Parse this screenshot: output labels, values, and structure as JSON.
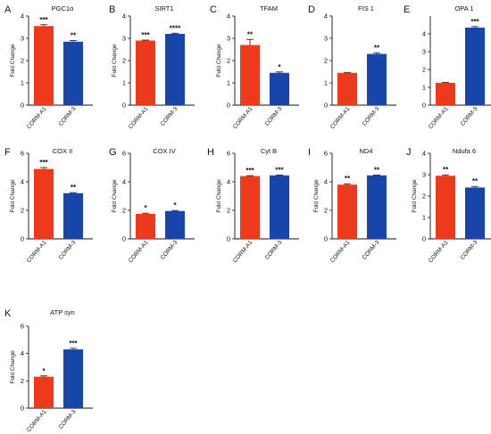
{
  "colors": {
    "bar1": "#ee3a1c",
    "bar2": "#1746a8",
    "axis": "#111111"
  },
  "chart_data": [
    {
      "panel": "A",
      "title": "PGC1α",
      "type": "bar",
      "ylabel": "Fold Change",
      "categories": [
        "CORM-A1",
        "CORM-3"
      ],
      "values": [
        3.55,
        2.85
      ],
      "errors": [
        0.06,
        0.05
      ],
      "significance": [
        "***",
        "**"
      ],
      "ylim": [
        0,
        4
      ],
      "yticks": [
        0,
        1,
        2,
        3,
        4
      ]
    },
    {
      "panel": "B",
      "title": "SIRT1",
      "type": "bar",
      "ylabel": "Fold Change",
      "categories": [
        "CORM-A1",
        "CORM-3"
      ],
      "values": [
        2.9,
        3.2
      ],
      "errors": [
        0.02,
        0.03
      ],
      "significance": [
        "***",
        "****"
      ],
      "ylim": [
        0,
        4
      ],
      "yticks": [
        0,
        1,
        2,
        3,
        4
      ]
    },
    {
      "panel": "C",
      "title": "TFAM",
      "type": "bar",
      "ylabel": "Fold Change",
      "categories": [
        "CORM-A1",
        "CORM-3"
      ],
      "values": [
        2.7,
        1.45
      ],
      "errors": [
        0.25,
        0.04
      ],
      "significance": [
        "**",
        "*"
      ],
      "ylim": [
        0,
        4
      ],
      "yticks": [
        0,
        1,
        2,
        3,
        4
      ]
    },
    {
      "panel": "D",
      "title": "FIS 1",
      "type": "bar",
      "ylabel": "",
      "categories": [
        "CORM-A1",
        "CORM-3"
      ],
      "values": [
        1.45,
        2.3
      ],
      "errors": [
        0.02,
        0.05
      ],
      "significance": [
        "",
        "**"
      ],
      "ylim": [
        0,
        4
      ],
      "yticks": [
        0,
        1,
        2,
        3,
        4
      ]
    },
    {
      "panel": "E",
      "title": "OPA 1",
      "type": "bar",
      "ylabel": "",
      "categories": [
        "CORM-A1",
        "CORM-3"
      ],
      "values": [
        1.25,
        4.35
      ],
      "errors": [
        0.02,
        0.06
      ],
      "significance": [
        "",
        "***"
      ],
      "ylim": [
        0,
        5
      ],
      "yticks": [
        0,
        1,
        2,
        3,
        4
      ]
    },
    {
      "panel": "F",
      "title": "COX II",
      "type": "bar",
      "ylabel": "Fold Change",
      "categories": [
        "CORM-A1",
        "CORM-3"
      ],
      "values": [
        4.9,
        3.2
      ],
      "errors": [
        0.1,
        0.04
      ],
      "significance": [
        "***",
        "**"
      ],
      "ylim": [
        0,
        6
      ],
      "yticks": [
        0,
        2,
        4,
        6
      ]
    },
    {
      "panel": "G",
      "title": "COX IV",
      "type": "bar",
      "ylabel": "Fold Change",
      "categories": [
        "CORM-A1",
        "CORM-3"
      ],
      "values": [
        1.75,
        1.95
      ],
      "errors": [
        0.05,
        0.04
      ],
      "significance": [
        "*",
        "*"
      ],
      "ylim": [
        0,
        6
      ],
      "yticks": [
        0,
        2,
        4,
        6
      ]
    },
    {
      "panel": "H",
      "title": "Cyt B",
      "type": "bar",
      "ylabel": "Fold Change",
      "categories": [
        "CORM-A1",
        "CORM-3"
      ],
      "values": [
        4.4,
        4.45
      ],
      "errors": [
        0.03,
        0.03
      ],
      "significance": [
        "***",
        "***"
      ],
      "ylim": [
        0,
        6
      ],
      "yticks": [
        0,
        2,
        4,
        6
      ]
    },
    {
      "panel": "I",
      "title": "ND4",
      "type": "bar",
      "ylabel": "Fold Change",
      "categories": [
        "CORM-A1",
        "CORM-3"
      ],
      "values": [
        3.8,
        4.45
      ],
      "errors": [
        0.06,
        0.03
      ],
      "significance": [
        "**",
        "**"
      ],
      "ylim": [
        0,
        6
      ],
      "yticks": [
        0,
        2,
        4,
        6
      ]
    },
    {
      "panel": "J",
      "title": "Ndufa 6",
      "type": "bar",
      "ylabel": "Fold Change",
      "categories": [
        "CORM-A1",
        "CORM-3"
      ],
      "values": [
        2.95,
        2.4
      ],
      "errors": [
        0.04,
        0.05
      ],
      "significance": [
        "**",
        "**"
      ],
      "ylim": [
        0,
        4
      ],
      "yticks": [
        0,
        1,
        2,
        3,
        4
      ]
    },
    {
      "panel": "K",
      "title": "ATP syn",
      "type": "bar",
      "ylabel": "Fold Change",
      "categories": [
        "CORM-A1",
        "CORM-3"
      ],
      "values": [
        2.3,
        4.3
      ],
      "errors": [
        0.06,
        0.08
      ],
      "significance": [
        "*",
        "***"
      ],
      "ylim": [
        0,
        6
      ],
      "yticks": [
        0,
        2,
        4,
        6
      ]
    }
  ]
}
